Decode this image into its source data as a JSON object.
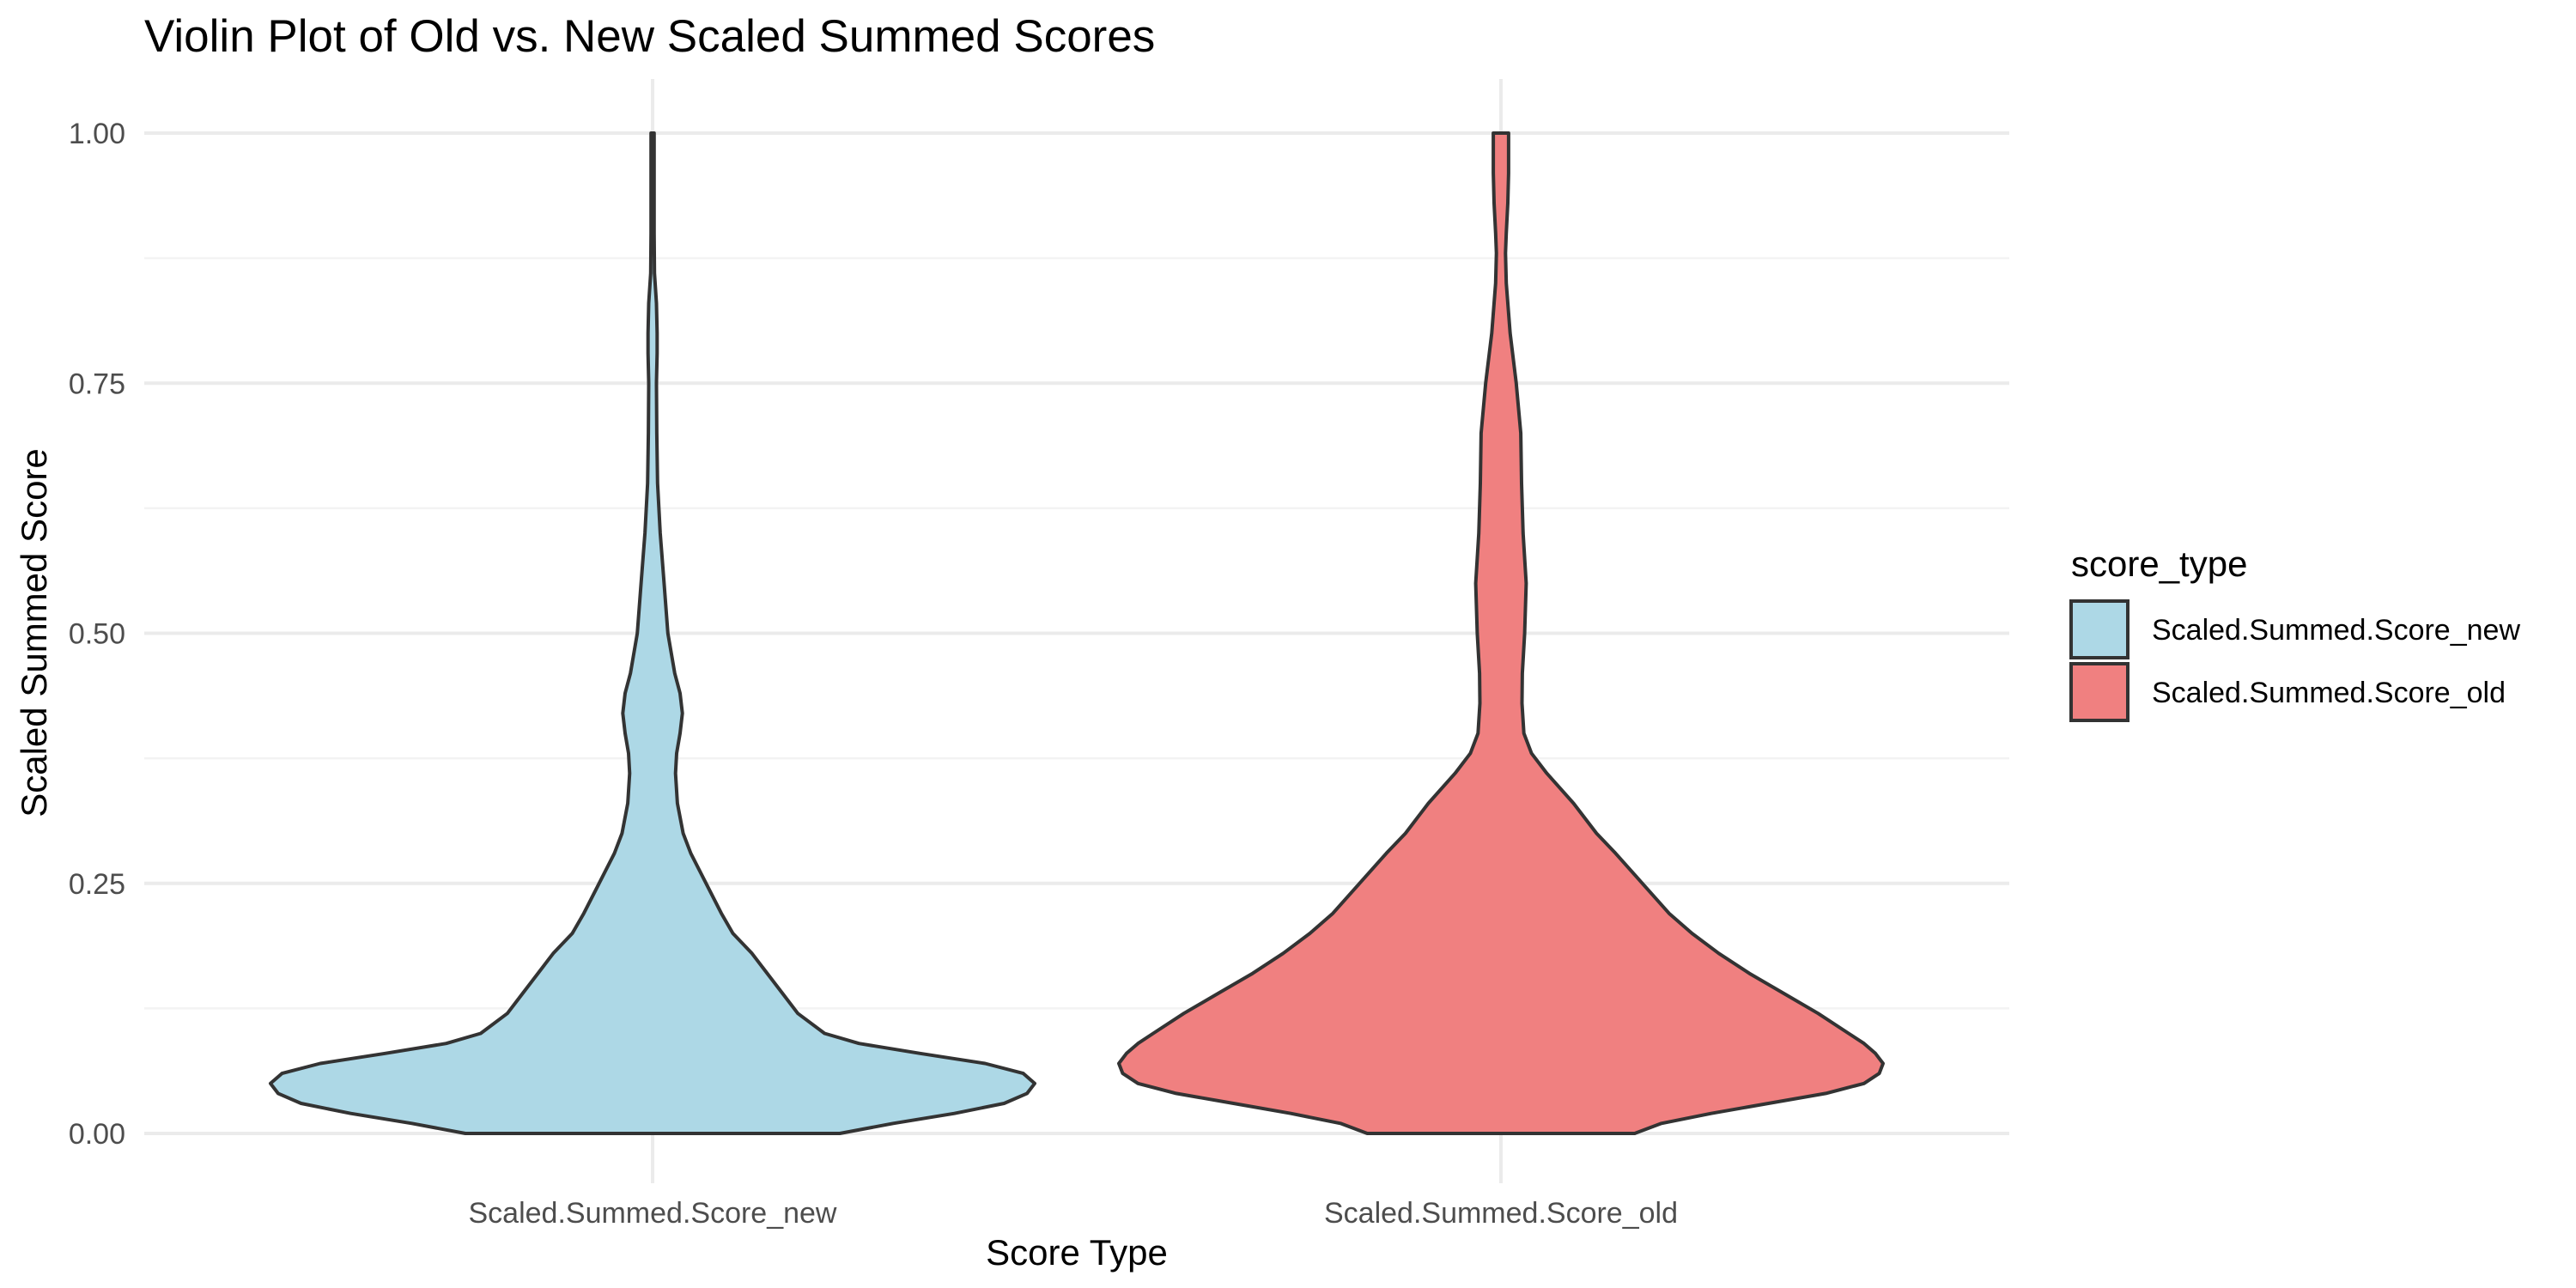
{
  "chart_data": {
    "type": "violin",
    "title": "Violin Plot of Old vs. New Scaled Summed Scores",
    "xlabel": "Score Type",
    "ylabel": "Scaled Summed Score",
    "ylim": [
      0,
      1
    ],
    "yticks": [
      "0.00",
      "0.25",
      "0.50",
      "0.75",
      "1.00"
    ],
    "ytick_values": [
      0,
      0.25,
      0.5,
      0.75,
      1.0
    ],
    "categories": [
      "Scaled.Summed.Score_new",
      "Scaled.Summed.Score_old"
    ],
    "grid": true,
    "legend": {
      "title": "score_type",
      "placement": "right",
      "entries": [
        "Scaled.Summed.Score_new",
        "Scaled.Summed.Score_old"
      ]
    },
    "series": [
      {
        "category": "Scaled.Summed.Score_new",
        "color": "#add8e6",
        "density_profile": [
          [
            0.0,
            0.49
          ],
          [
            0.01,
            0.63
          ],
          [
            0.02,
            0.79
          ],
          [
            0.03,
            0.92
          ],
          [
            0.04,
            0.98
          ],
          [
            0.05,
            1.0
          ],
          [
            0.06,
            0.97
          ],
          [
            0.07,
            0.87
          ],
          [
            0.08,
            0.7
          ],
          [
            0.09,
            0.54
          ],
          [
            0.1,
            0.45
          ],
          [
            0.12,
            0.38
          ],
          [
            0.14,
            0.34
          ],
          [
            0.16,
            0.3
          ],
          [
            0.18,
            0.26
          ],
          [
            0.2,
            0.21
          ],
          [
            0.22,
            0.18
          ],
          [
            0.25,
            0.14
          ],
          [
            0.28,
            0.1
          ],
          [
            0.3,
            0.08
          ],
          [
            0.33,
            0.065
          ],
          [
            0.36,
            0.06
          ],
          [
            0.38,
            0.063
          ],
          [
            0.4,
            0.072
          ],
          [
            0.42,
            0.078
          ],
          [
            0.44,
            0.072
          ],
          [
            0.46,
            0.058
          ],
          [
            0.5,
            0.04
          ],
          [
            0.55,
            0.03
          ],
          [
            0.6,
            0.02
          ],
          [
            0.65,
            0.013
          ],
          [
            0.7,
            0.011
          ],
          [
            0.75,
            0.01
          ],
          [
            0.78,
            0.012
          ],
          [
            0.8,
            0.012
          ],
          [
            0.83,
            0.01
          ],
          [
            0.86,
            0.005
          ],
          [
            0.9,
            0.004
          ],
          [
            0.95,
            0.004
          ],
          [
            1.0,
            0.004
          ]
        ]
      },
      {
        "category": "Scaled.Summed.Score_old",
        "color": "#f08080",
        "density_profile": [
          [
            0.0,
            0.35
          ],
          [
            0.01,
            0.42
          ],
          [
            0.02,
            0.55
          ],
          [
            0.03,
            0.7
          ],
          [
            0.04,
            0.85
          ],
          [
            0.05,
            0.95
          ],
          [
            0.06,
            0.99
          ],
          [
            0.07,
            1.0
          ],
          [
            0.08,
            0.98
          ],
          [
            0.09,
            0.95
          ],
          [
            0.1,
            0.91
          ],
          [
            0.12,
            0.83
          ],
          [
            0.14,
            0.74
          ],
          [
            0.16,
            0.65
          ],
          [
            0.18,
            0.57
          ],
          [
            0.2,
            0.5
          ],
          [
            0.22,
            0.44
          ],
          [
            0.25,
            0.37
          ],
          [
            0.28,
            0.3
          ],
          [
            0.3,
            0.25
          ],
          [
            0.33,
            0.19
          ],
          [
            0.36,
            0.12
          ],
          [
            0.38,
            0.08
          ],
          [
            0.4,
            0.06
          ],
          [
            0.43,
            0.055
          ],
          [
            0.46,
            0.056
          ],
          [
            0.5,
            0.062
          ],
          [
            0.55,
            0.066
          ],
          [
            0.6,
            0.058
          ],
          [
            0.65,
            0.054
          ],
          [
            0.7,
            0.052
          ],
          [
            0.75,
            0.04
          ],
          [
            0.8,
            0.024
          ],
          [
            0.85,
            0.014
          ],
          [
            0.88,
            0.012
          ],
          [
            0.9,
            0.014
          ],
          [
            0.93,
            0.018
          ],
          [
            0.96,
            0.02
          ],
          [
            1.0,
            0.02
          ]
        ]
      }
    ]
  }
}
